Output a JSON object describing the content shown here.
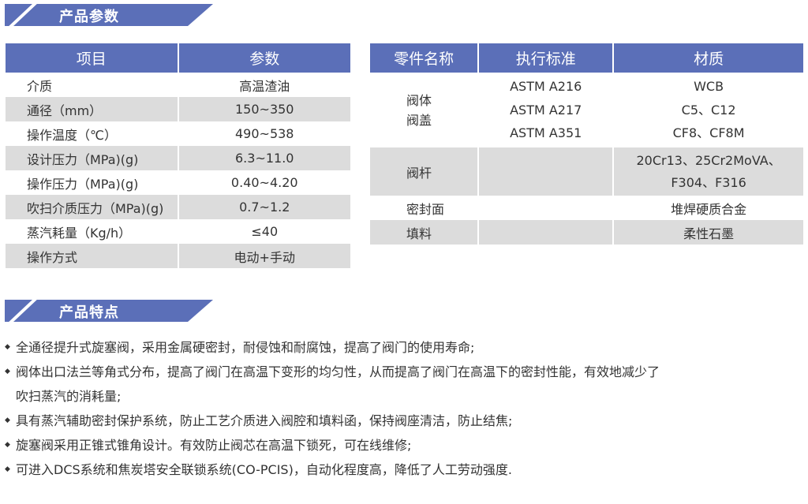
{
  "colors": {
    "accent": "#5b6fb8",
    "row_alt": "#dcdcdc"
  },
  "params_section": {
    "title": "产品参数"
  },
  "params_table": {
    "headers": [
      "项目",
      "参数"
    ],
    "rows": [
      [
        "介质",
        "高温渣油"
      ],
      [
        "通径（mm）",
        "150~350"
      ],
      [
        "操作温度（℃）",
        "490~538"
      ],
      [
        "设计压力（MPa)(g)",
        "6.3~11.0"
      ],
      [
        "操作压力（MPa)(g)",
        "0.40~4.20"
      ],
      [
        "吹扫介质压力（MPa)(g)",
        "0.7~1.2"
      ],
      [
        "蒸汽耗量（Kg/h）",
        "≤40"
      ],
      [
        "操作方式",
        "电动+手动"
      ]
    ]
  },
  "parts_table": {
    "headers": [
      "零件名称",
      "执行标准",
      "材质"
    ],
    "body_part": [
      "阀体",
      "阀盖"
    ],
    "body_standards": [
      "ASTM A216",
      "ASTM A217",
      "ASTM A351"
    ],
    "body_materials": [
      "WCB",
      "C5、C12",
      "CF8、CF8M"
    ],
    "stem": {
      "part": "阀杆",
      "materials": [
        "20Cr13、25Cr2MoVA、",
        "F304、F316"
      ]
    },
    "seal": {
      "part": "密封面",
      "material": "堆焊硬质合金"
    },
    "packing": {
      "part": "填料",
      "material": "柔性石墨"
    }
  },
  "features_section": {
    "title": "产品特点"
  },
  "features": [
    "全通径提升式旋塞阀，采用金属硬密封，耐侵蚀和耐腐蚀，提高了阀门的使用寿命;",
    "阀体出口法兰等角式分布，提高了阀门在高温下变形的均匀性，从而提高了阀门在高温下的密封性能，有效地减少了",
    "吹扫蒸汽的消耗量;",
    "具有蒸汽辅助密封保护系统，防止工艺介质进入阀腔和填料函，保持阀座清洁，防止结焦;",
    "旋塞阀采用正锥式锥角设计。有效防止阀芯在高温下锁死，可在线维修;",
    "可进入DCS系统和焦炭塔安全联锁系统(CO-PCIS)，自动化程度高，降低了人工劳动强度."
  ]
}
